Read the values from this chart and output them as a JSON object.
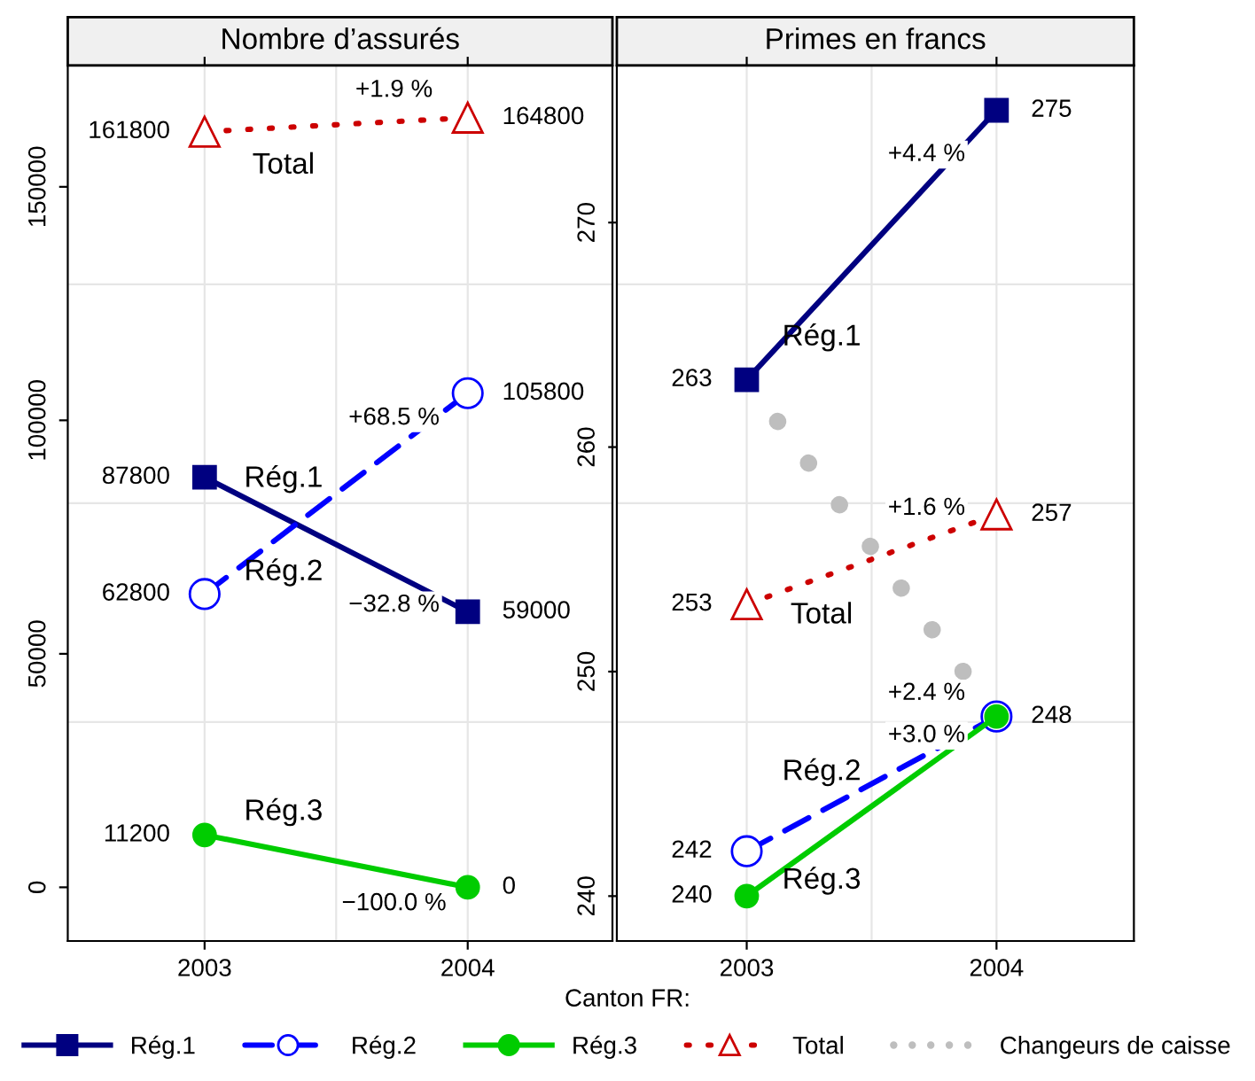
{
  "chart_data": [
    {
      "type": "line",
      "title": "Nombre d’assurés",
      "xlabel": "Canton FR:",
      "categories": [
        "2003",
        "2004"
      ],
      "ylim": [
        -11500,
        176000
      ],
      "yticks": [
        0,
        50000,
        100000,
        150000
      ],
      "grid": true,
      "data_labels": true,
      "series": [
        {
          "name": "Rég.1",
          "color": "#000080",
          "values": [
            87800,
            59000
          ],
          "marker": "square",
          "line_style": "solid"
        },
        {
          "name": "Rég.2",
          "color": "#0000ff",
          "values": [
            62800,
            105800
          ],
          "marker": "circle",
          "line_style": "dashed"
        },
        {
          "name": "Rég.3",
          "color": "#00cc00",
          "values": [
            11200,
            0
          ],
          "marker": "circle",
          "line_style": "solid"
        },
        {
          "name": "Total",
          "color": "#cc0000",
          "values": [
            161800,
            164800
          ],
          "marker": "triangle",
          "line_style": "dotted"
        }
      ],
      "annotations": [
        "−32.8 %",
        "+68.5 %",
        "−100.0 %",
        "+1.9 %"
      ]
    },
    {
      "type": "line",
      "title": "Primes en francs",
      "categories": [
        "2003",
        "2004"
      ],
      "ylim": [
        238,
        277
      ],
      "yticks": [
        240,
        250,
        260,
        270
      ],
      "grid": true,
      "legend": "bottom",
      "series": [
        {
          "name": "Rég.1",
          "color": "#000080",
          "values": [
            263,
            275
          ],
          "marker": "square",
          "line_style": "solid",
          "value_labels": [
            "263",
            "275"
          ]
        },
        {
          "name": "Rég.2",
          "color": "#0000ff",
          "values": [
            242,
            248
          ],
          "marker": "circle",
          "line_style": "dashed",
          "value_labels": [
            "242",
            null
          ]
        },
        {
          "name": "Rég.3",
          "color": "#00cc00",
          "values": [
            240,
            248
          ],
          "marker": "circle",
          "line_style": "solid",
          "value_labels": [
            "240",
            "248"
          ]
        },
        {
          "name": "Total",
          "color": "#cc0000",
          "values": [
            253,
            257
          ],
          "marker": "triangle",
          "line_style": "dotted",
          "value_labels": [
            "253",
            "257"
          ]
        },
        {
          "name": "Changeurs de caisse",
          "color": "#bebebe",
          "values": [
            263,
            248
          ],
          "marker": "none",
          "line_style": "dotted"
        }
      ],
      "annotations": [
        "+4.4 %",
        "+2.4 %",
        "+3.0 %",
        "+1.6 %"
      ]
    }
  ]
}
